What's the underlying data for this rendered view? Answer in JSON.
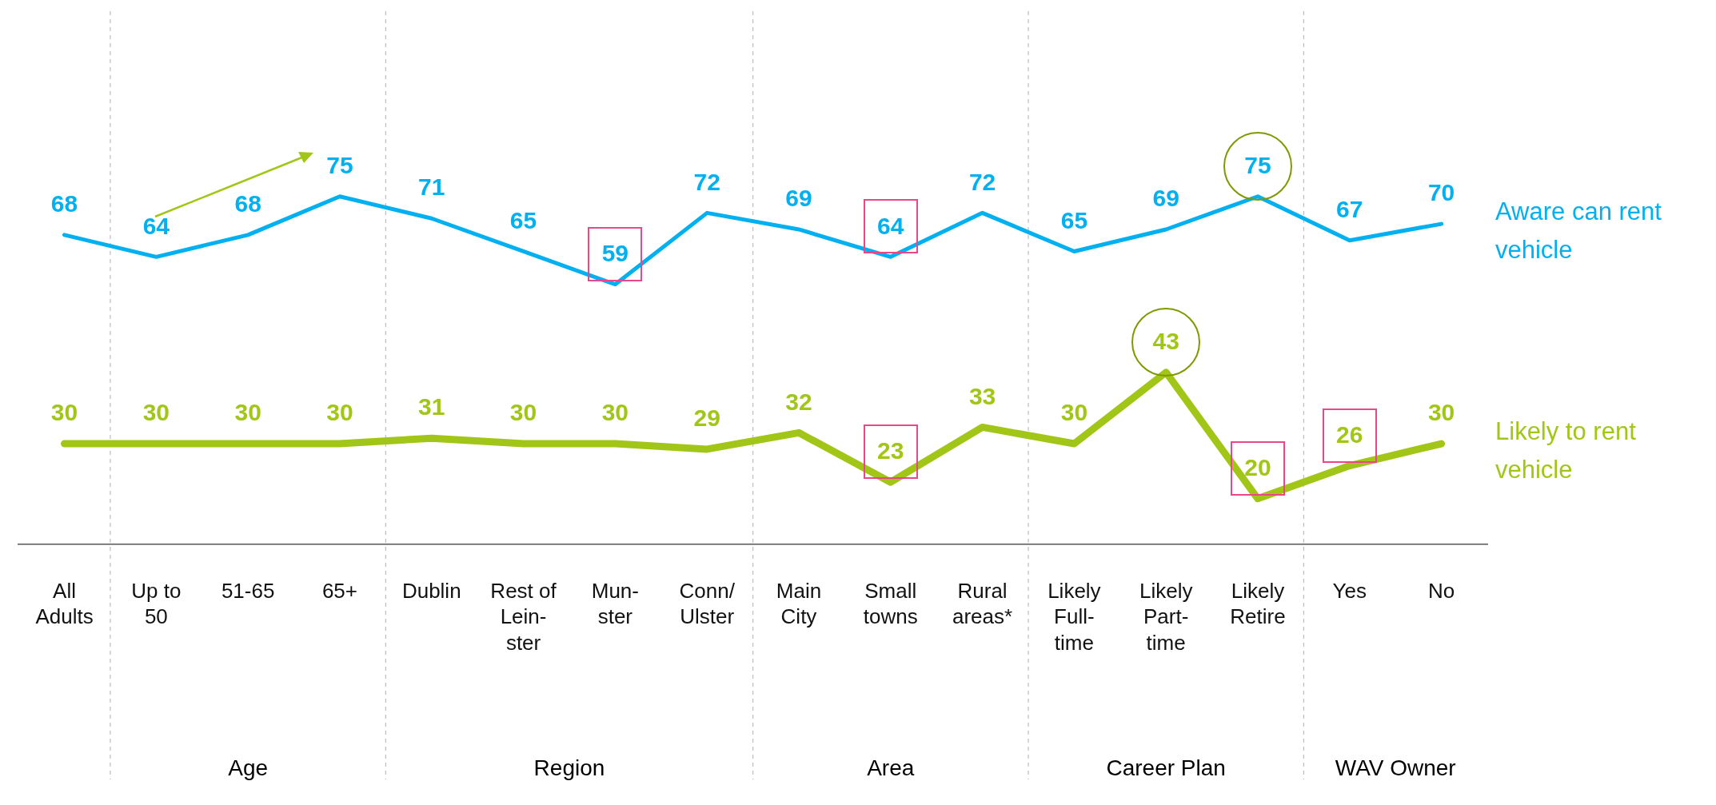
{
  "chart_data": {
    "type": "line",
    "categories": [
      "All\nAdults",
      "Up to\n50",
      "51-65",
      "65+",
      "Dublin",
      "Rest of\nLein-\nster",
      "Mun-\nster",
      "Conn/\nUlster",
      "Main\nCity",
      "Small\ntowns",
      "Rural\nareas*",
      "Likely\nFull-\ntime",
      "Likely\nPart-\ntime",
      "Likely\nRetire",
      "Yes",
      "No"
    ],
    "series": [
      {
        "name": "Aware can rent vehicle",
        "color": "#00b0f0",
        "values": [
          68,
          64,
          68,
          75,
          71,
          65,
          59,
          72,
          69,
          64,
          72,
          65,
          69,
          75,
          67,
          70
        ]
      },
      {
        "name": "Likely to rent vehicle",
        "color": "#a2c617",
        "values": [
          30,
          30,
          30,
          30,
          31,
          30,
          30,
          29,
          32,
          23,
          33,
          30,
          43,
          20,
          26,
          30
        ]
      }
    ],
    "annotations": [
      "Age",
      "Region",
      "Area",
      "Career Plan",
      "WAV Owner"
    ],
    "data_labels": true,
    "legend": "right",
    "grid": false
  }
}
